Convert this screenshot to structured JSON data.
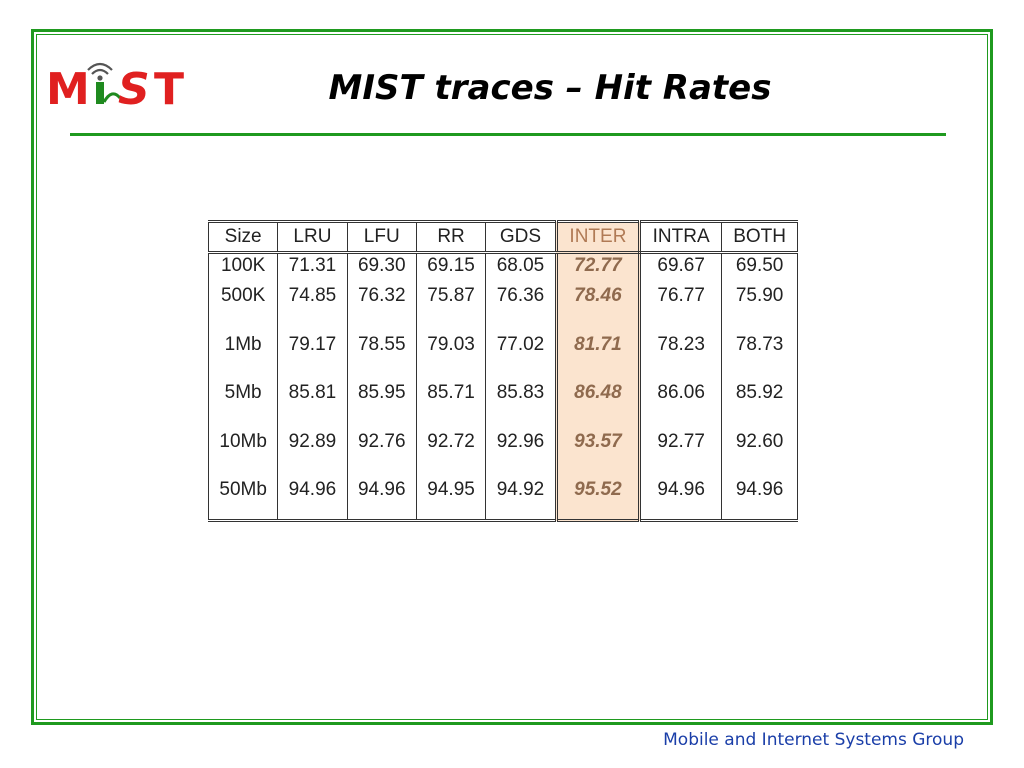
{
  "logo": {
    "text": "MiST",
    "colors": {
      "m": "#e02020",
      "st": "#e02020",
      "i": "#1f8a1f",
      "wifi": "#555555"
    }
  },
  "slide": {
    "title": "MIST traces – Hit Rates",
    "footer": "Mobile and Internet Systems Group"
  },
  "colors": {
    "frame": "#1f9a1f",
    "footer_text": "#1a3ea8",
    "highlight_fill": "#fbe4cf",
    "highlight_text": "#8f6a4e"
  },
  "table": {
    "columns": [
      "Size",
      "LRU",
      "LFU",
      "RR",
      "GDS",
      "INTER",
      "INTRA",
      "BOTH"
    ],
    "highlighted_column": "INTER",
    "rows": [
      [
        "100K",
        "71.31",
        "69.30",
        "69.15",
        "68.05",
        "72.77",
        "69.67",
        "69.50"
      ],
      [
        "500K",
        "74.85",
        "76.32",
        "75.87",
        "76.36",
        "78.46",
        "76.77",
        "75.90"
      ],
      [
        "1Mb",
        "79.17",
        "78.55",
        "79.03",
        "77.02",
        "81.71",
        "78.23",
        "78.73"
      ],
      [
        "5Mb",
        "85.81",
        "85.95",
        "85.71",
        "85.83",
        "86.48",
        "86.06",
        "85.92"
      ],
      [
        "10Mb",
        "92.89",
        "92.76",
        "92.72",
        "92.96",
        "93.57",
        "92.77",
        "92.60"
      ],
      [
        "50Mb",
        "94.96",
        "94.96",
        "94.95",
        "94.92",
        "95.52",
        "94.96",
        "94.96"
      ]
    ]
  }
}
